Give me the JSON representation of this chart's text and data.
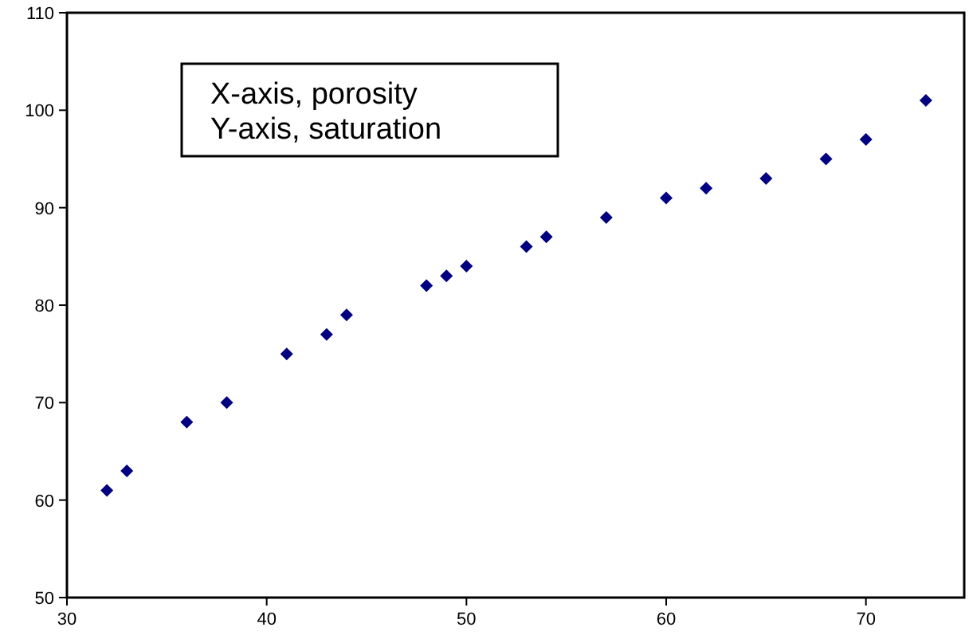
{
  "chart_data": {
    "type": "scatter",
    "annotations": [
      "X-axis, porosity\nY-axis, saturation"
    ],
    "x": [
      32,
      33,
      36,
      38,
      41,
      43,
      44,
      48,
      49,
      50,
      53,
      54,
      57,
      60,
      62,
      65,
      68,
      70,
      73
    ],
    "series": [
      {
        "color": "#000080",
        "values": [
          61,
          63,
          68,
          70,
          75,
          77,
          79,
          82,
          83,
          84,
          86,
          87,
          89,
          91,
          92,
          93,
          95,
          97,
          101
        ]
      }
    ],
    "xlim": [
      30,
      75
    ],
    "xticks": [
      30,
      40,
      50,
      60,
      70
    ],
    "ylim": [
      50,
      110
    ],
    "yticks": [
      50,
      60,
      70,
      80,
      90,
      100,
      110
    ],
    "grid": false,
    "marker": "diamond"
  }
}
